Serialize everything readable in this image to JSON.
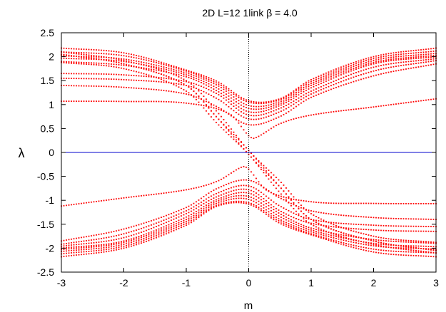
{
  "chart_data": {
    "type": "scatter",
    "title": "2D  L=12  1link   β = 4.0",
    "xlabel": "m",
    "ylabel": "λ",
    "xlim": [
      -3,
      3
    ],
    "ylim": [
      -2.5,
      2.5
    ],
    "x_ticks": [
      "-3",
      "-2",
      "-1",
      "0",
      "1",
      "2",
      "3"
    ],
    "y_ticks": [
      "2.5",
      "2",
      "1.5",
      "1",
      "0.5",
      "0",
      "-0.5",
      "-1",
      "-1.5",
      "-2",
      "-2.5"
    ],
    "grid": false,
    "reference_lines": [
      {
        "orientation": "horizontal",
        "value": 0,
        "color": "#0000cc",
        "style": "solid"
      },
      {
        "orientation": "vertical",
        "value": 0,
        "color": "#000000",
        "style": "dotted"
      }
    ],
    "colors": {
      "points": "#ff0000",
      "zero_line": "#0000cc"
    },
    "series": [
      {
        "values_at_m": [
          [
            -3,
            1.07
          ],
          [
            -2,
            1.065
          ],
          [
            -1,
            1.03
          ],
          [
            -0.3,
            0.8
          ],
          [
            0,
            0.35
          ],
          [
            0.1,
            0.3
          ],
          [
            0.5,
            0.6
          ],
          [
            1,
            0.78
          ],
          [
            2,
            0.95
          ],
          [
            3,
            1.12
          ]
        ]
      },
      {
        "values_at_m": [
          [
            -3,
            1.4
          ],
          [
            -2,
            1.36
          ],
          [
            -1,
            1.22
          ],
          [
            -0.5,
            0.95
          ],
          [
            0,
            0.58
          ],
          [
            0.5,
            0.75
          ],
          [
            1,
            1.15
          ],
          [
            2,
            1.6
          ],
          [
            3,
            1.85
          ]
        ]
      },
      {
        "values_at_m": [
          [
            -3,
            1.55
          ],
          [
            -2,
            1.52
          ],
          [
            -1,
            1.4
          ],
          [
            -0.5,
            1.12
          ],
          [
            0,
            0.7
          ],
          [
            0.5,
            0.85
          ],
          [
            1,
            1.22
          ],
          [
            2,
            1.7
          ],
          [
            3,
            1.92
          ]
        ]
      },
      {
        "values_at_m": [
          [
            -3,
            1.65
          ],
          [
            -2,
            1.62
          ],
          [
            -1,
            1.48
          ],
          [
            -0.5,
            1.22
          ],
          [
            0,
            0.78
          ],
          [
            0.5,
            0.92
          ],
          [
            1,
            1.28
          ],
          [
            2,
            1.78
          ],
          [
            3,
            1.96
          ]
        ]
      },
      {
        "values_at_m": [
          [
            -3,
            1.9
          ],
          [
            -2,
            1.82
          ],
          [
            -1,
            1.58
          ],
          [
            -0.5,
            1.28
          ],
          [
            0,
            0.85
          ],
          [
            0.5,
            0.98
          ],
          [
            1,
            1.35
          ],
          [
            2,
            1.85
          ],
          [
            3,
            2.0
          ]
        ]
      },
      {
        "values_at_m": [
          [
            -3,
            1.97
          ],
          [
            -2,
            1.9
          ],
          [
            -1,
            1.62
          ],
          [
            -0.5,
            1.34
          ],
          [
            0,
            0.92
          ],
          [
            0.5,
            1.02
          ],
          [
            1,
            1.4
          ],
          [
            2,
            1.88
          ],
          [
            3,
            2.03
          ]
        ]
      },
      {
        "values_at_m": [
          [
            -3,
            2.02
          ],
          [
            -2,
            1.95
          ],
          [
            -1,
            1.66
          ],
          [
            -0.5,
            1.4
          ],
          [
            0,
            0.98
          ],
          [
            0.5,
            1.06
          ],
          [
            1,
            1.44
          ],
          [
            2,
            1.92
          ],
          [
            3,
            2.07
          ]
        ]
      },
      {
        "values_at_m": [
          [
            -3,
            2.1
          ],
          [
            -2,
            2.02
          ],
          [
            -1,
            1.7
          ],
          [
            -0.5,
            1.44
          ],
          [
            0,
            1.05
          ],
          [
            0.5,
            1.1
          ],
          [
            1,
            1.48
          ],
          [
            2,
            1.96
          ],
          [
            3,
            2.12
          ]
        ]
      },
      {
        "values_at_m": [
          [
            -3,
            2.18
          ],
          [
            -2,
            2.08
          ],
          [
            -1,
            1.72
          ],
          [
            -0.5,
            1.48
          ],
          [
            0,
            1.08
          ],
          [
            0.5,
            1.12
          ],
          [
            1,
            1.52
          ],
          [
            2,
            2.0
          ],
          [
            3,
            2.18
          ]
        ]
      },
      {
        "values_at_m": [
          [
            -3,
            2.05
          ],
          [
            -2,
            1.85
          ],
          [
            -1,
            1.4
          ],
          [
            -0.5,
            0.72
          ],
          [
            0,
            0.04
          ],
          [
            0.5,
            -0.72
          ],
          [
            1,
            -1.4
          ],
          [
            2,
            -1.85
          ],
          [
            3,
            -2.05
          ]
        ]
      },
      {
        "values_at_m": [
          [
            -3,
            1.88
          ],
          [
            -2,
            1.75
          ],
          [
            -1,
            1.28
          ],
          [
            -0.5,
            0.6
          ],
          [
            0,
            -0.04
          ],
          [
            0.5,
            -0.84
          ],
          [
            1,
            -1.5
          ],
          [
            2,
            -1.92
          ],
          [
            3,
            -2.1
          ]
        ]
      }
    ],
    "symmetry": "point-symmetric: each series also appears mirrored as (−m, −λ)"
  }
}
